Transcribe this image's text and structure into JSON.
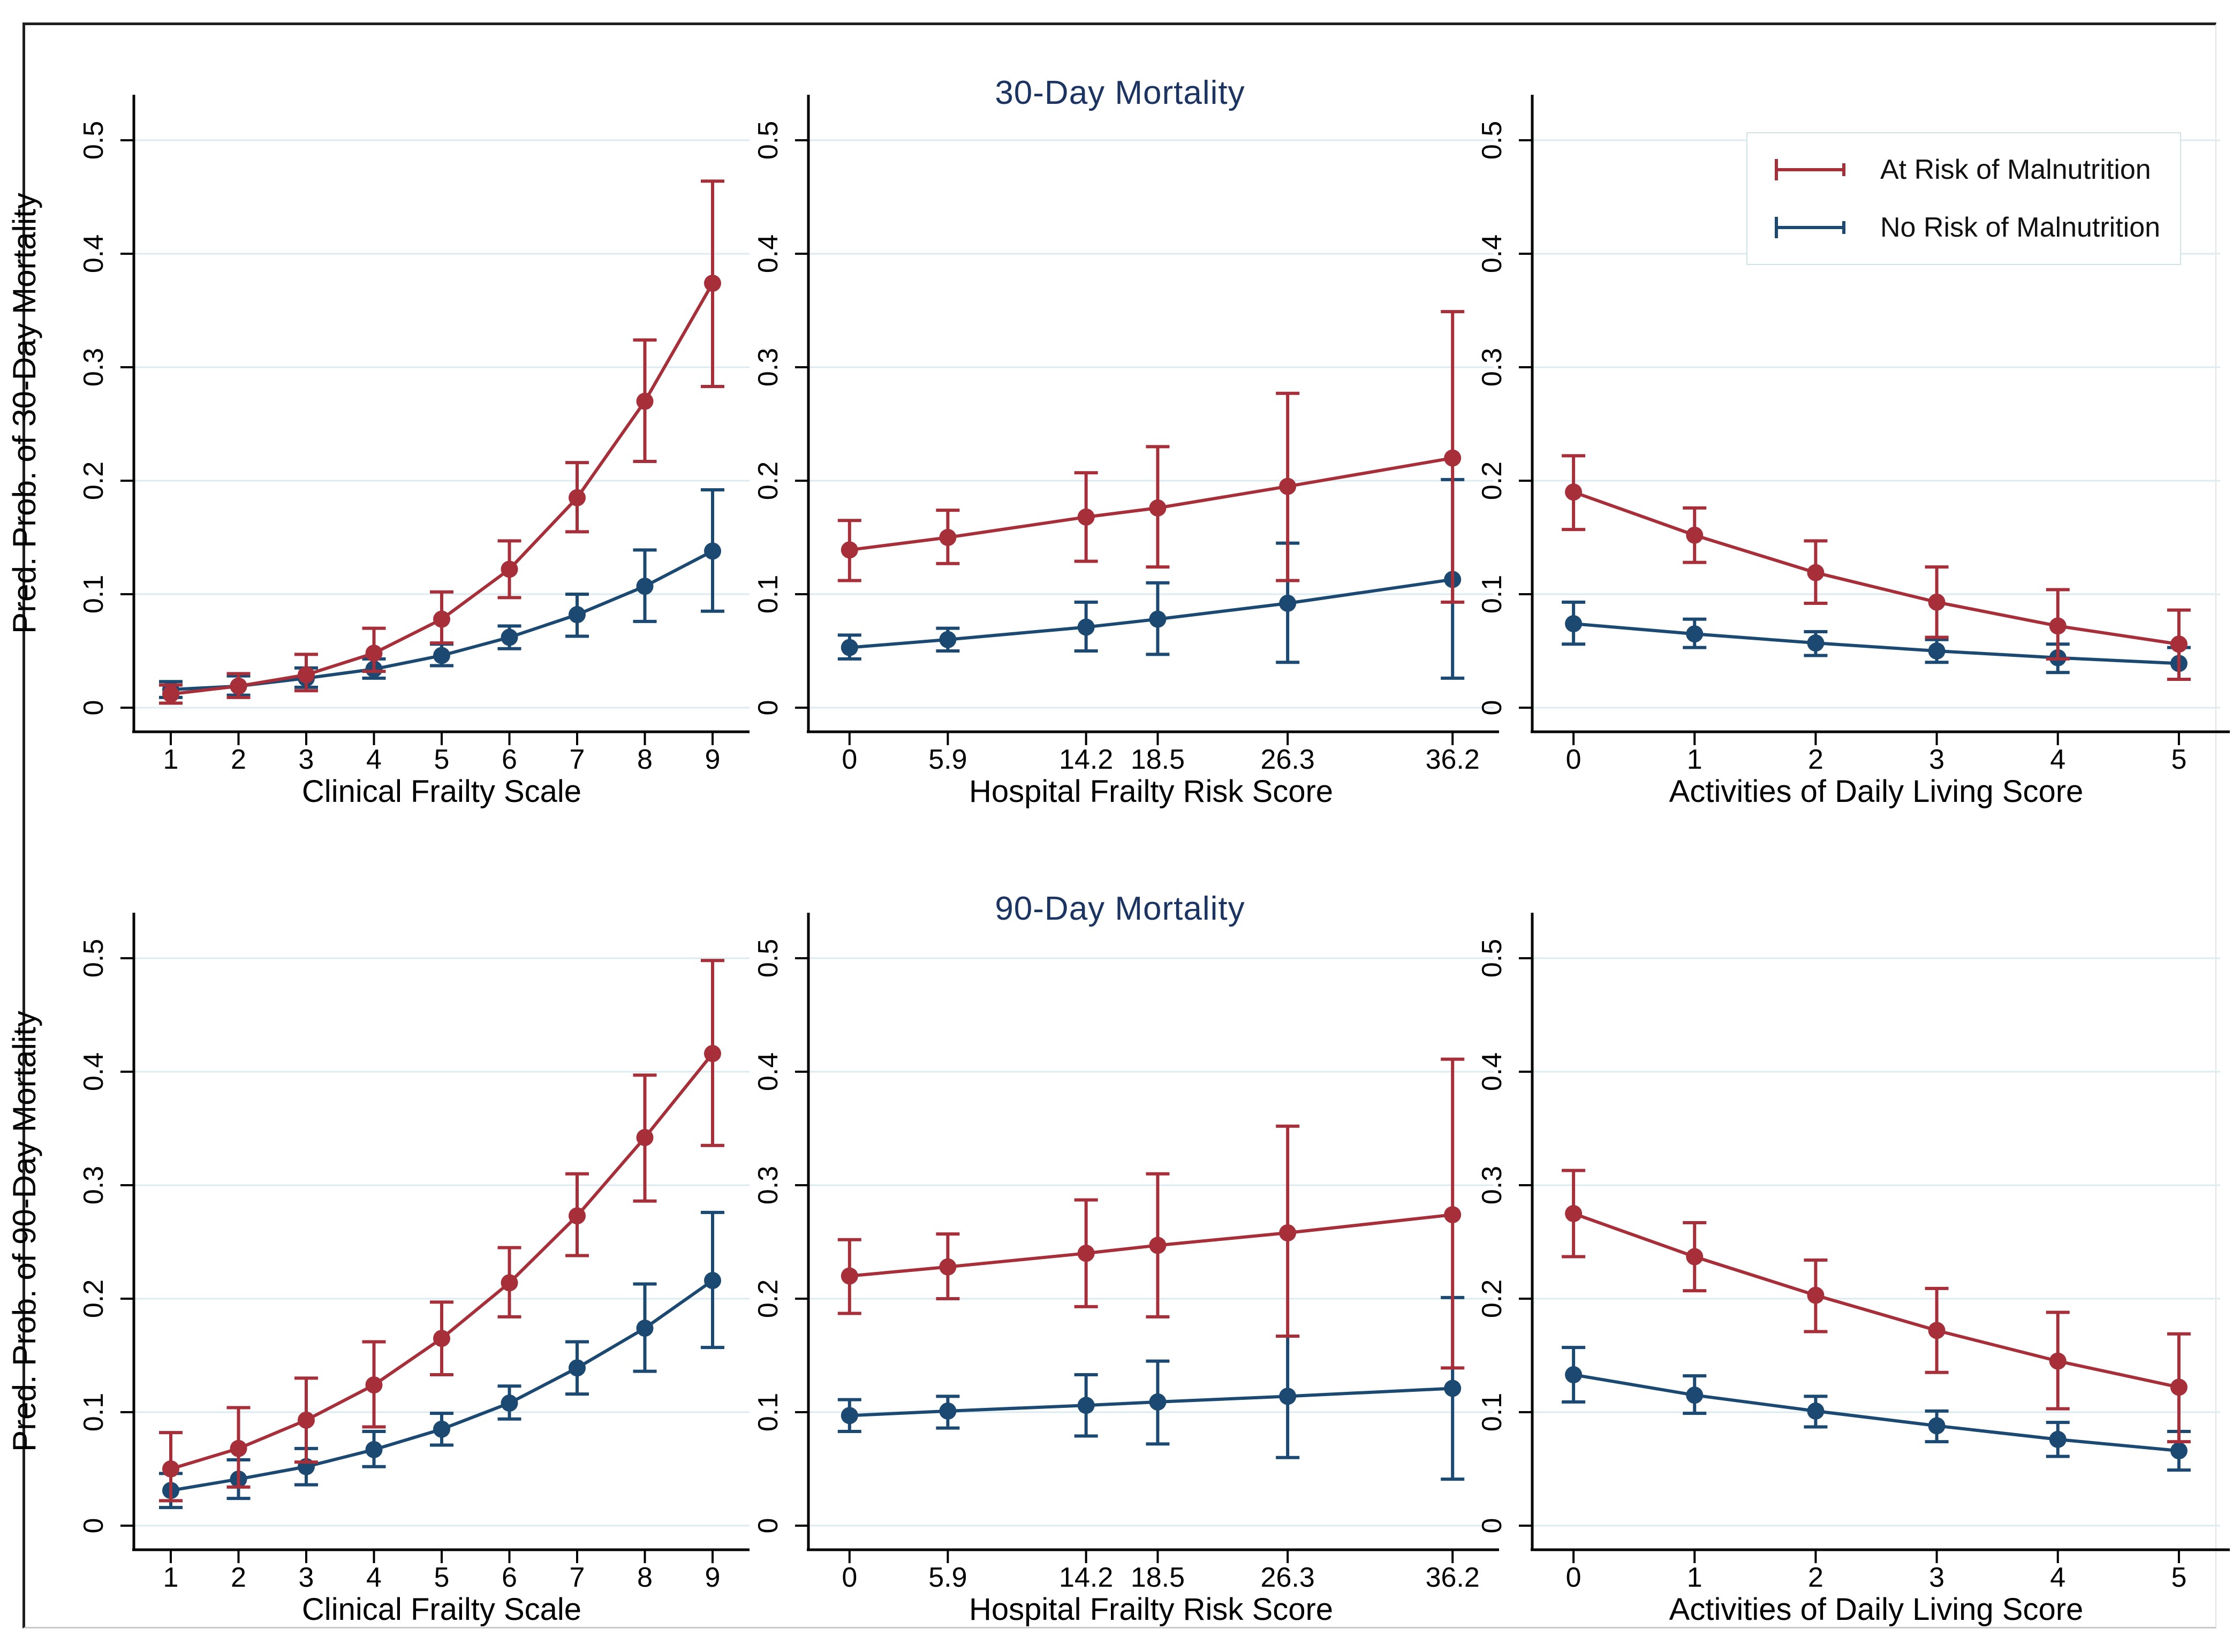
{
  "figure": {
    "row_titles": [
      "30-Day Mortality",
      "90-Day Mortality"
    ],
    "title_color": "#1b3461",
    "grid_color": "#dcebf0",
    "axis_color": "#000000",
    "legend": {
      "items": [
        {
          "label": "At Risk of Malnutrition",
          "color": "#A62F39"
        },
        {
          "label": "No Risk of Malnutrition",
          "color": "#1B4972"
        }
      ]
    }
  },
  "chart_data": [
    {
      "id": "p1",
      "type": "line",
      "group_title": "30-Day Mortality",
      "ylabel": "Pred. Prob. of 30-Day Mortality",
      "xlabel": "Clinical Frailty Scale",
      "x": [
        1,
        2,
        3,
        4,
        5,
        6,
        7,
        8,
        9
      ],
      "x_tick_labels": [
        "1",
        "2",
        "3",
        "4",
        "5",
        "6",
        "7",
        "8",
        "9"
      ],
      "xlim": [
        1,
        9
      ],
      "ylim": [
        0,
        0.5
      ],
      "y_ticks": [
        0,
        0.1,
        0.2,
        0.3,
        0.4,
        0.5
      ],
      "y_tick_labels": [
        "0",
        "0.1",
        "0.2",
        "0.3",
        "0.4",
        "0.5"
      ],
      "grid": true,
      "series": [
        {
          "name": "At Risk of Malnutrition",
          "color": "#A62F39",
          "y": [
            0.012,
            0.019,
            0.029,
            0.048,
            0.078,
            0.122,
            0.185,
            0.27,
            0.374
          ],
          "ci_low": [
            0.004,
            0.009,
            0.015,
            0.032,
            0.057,
            0.097,
            0.155,
            0.217,
            0.283
          ],
          "ci_high": [
            0.02,
            0.03,
            0.047,
            0.07,
            0.102,
            0.147,
            0.216,
            0.324,
            0.464
          ]
        },
        {
          "name": "No Risk of Malnutrition",
          "color": "#1B4972",
          "y": [
            0.016,
            0.019,
            0.026,
            0.034,
            0.046,
            0.062,
            0.082,
            0.107,
            0.138
          ],
          "ci_low": [
            0.009,
            0.011,
            0.018,
            0.026,
            0.037,
            0.052,
            0.063,
            0.076,
            0.085
          ],
          "ci_high": [
            0.023,
            0.028,
            0.035,
            0.043,
            0.056,
            0.072,
            0.1,
            0.139,
            0.192
          ]
        }
      ]
    },
    {
      "id": "p2",
      "type": "line",
      "group_title": "30-Day Mortality",
      "ylabel": "",
      "xlabel": "Hospital Frailty Risk Score",
      "x": [
        0,
        5.9,
        14.2,
        18.5,
        26.3,
        36.2
      ],
      "x_tick_labels": [
        "0",
        "5.9",
        "14.2",
        "18.5",
        "26.3",
        "36.2"
      ],
      "xlim": [
        0,
        36.2
      ],
      "ylim": [
        0,
        0.5
      ],
      "y_ticks": [
        0,
        0.1,
        0.2,
        0.3,
        0.4,
        0.5
      ],
      "y_tick_labels": [
        "0",
        "0.1",
        "0.2",
        "0.3",
        "0.4",
        "0.5"
      ],
      "grid": true,
      "series": [
        {
          "name": "At Risk of Malnutrition",
          "color": "#A62F39",
          "y": [
            0.139,
            0.15,
            0.168,
            0.176,
            0.195,
            0.22
          ],
          "ci_low": [
            0.112,
            0.127,
            0.129,
            0.124,
            0.112,
            0.093
          ],
          "ci_high": [
            0.165,
            0.174,
            0.207,
            0.23,
            0.277,
            0.349
          ]
        },
        {
          "name": "No Risk of Malnutrition",
          "color": "#1B4972",
          "y": [
            0.053,
            0.06,
            0.071,
            0.078,
            0.092,
            0.113
          ],
          "ci_low": [
            0.043,
            0.05,
            0.05,
            0.047,
            0.04,
            0.026
          ],
          "ci_high": [
            0.064,
            0.07,
            0.093,
            0.11,
            0.145,
            0.201
          ]
        }
      ]
    },
    {
      "id": "p3",
      "type": "line",
      "group_title": "30-Day Mortality",
      "ylabel": "",
      "xlabel": "Activities of Daily Living Score",
      "x": [
        0,
        1,
        2,
        3,
        4,
        5
      ],
      "x_tick_labels": [
        "0",
        "1",
        "2",
        "3",
        "4",
        "5"
      ],
      "xlim": [
        0,
        5
      ],
      "ylim": [
        0,
        0.5
      ],
      "y_ticks": [
        0,
        0.1,
        0.2,
        0.3,
        0.4,
        0.5
      ],
      "y_tick_labels": [
        "0",
        "0.1",
        "0.2",
        "0.3",
        "0.4",
        "0.5"
      ],
      "grid": true,
      "series": [
        {
          "name": "At Risk of Malnutrition",
          "color": "#A62F39",
          "y": [
            0.19,
            0.152,
            0.119,
            0.093,
            0.072,
            0.056
          ],
          "ci_low": [
            0.157,
            0.128,
            0.092,
            0.062,
            0.043,
            0.025
          ],
          "ci_high": [
            0.222,
            0.176,
            0.147,
            0.124,
            0.104,
            0.086
          ]
        },
        {
          "name": "No Risk of Malnutrition",
          "color": "#1B4972",
          "y": [
            0.074,
            0.065,
            0.057,
            0.05,
            0.044,
            0.039
          ],
          "ci_low": [
            0.056,
            0.053,
            0.046,
            0.04,
            0.031,
            0.025
          ],
          "ci_high": [
            0.093,
            0.078,
            0.067,
            0.06,
            0.056,
            0.053
          ]
        }
      ]
    },
    {
      "id": "p4",
      "type": "line",
      "group_title": "90-Day Mortality",
      "ylabel": "Pred. Prob. of 90-Day Mortality",
      "xlabel": "Clinical Frailty Scale",
      "x": [
        1,
        2,
        3,
        4,
        5,
        6,
        7,
        8,
        9
      ],
      "x_tick_labels": [
        "1",
        "2",
        "3",
        "4",
        "5",
        "6",
        "7",
        "8",
        "9"
      ],
      "xlim": [
        1,
        9
      ],
      "ylim": [
        0,
        0.5
      ],
      "y_ticks": [
        0,
        0.1,
        0.2,
        0.3,
        0.4,
        0.5
      ],
      "y_tick_labels": [
        "0",
        "0.1",
        "0.2",
        "0.3",
        "0.4",
        "0.5"
      ],
      "grid": true,
      "series": [
        {
          "name": "At Risk of Malnutrition",
          "color": "#A62F39",
          "y": [
            0.05,
            0.068,
            0.093,
            0.124,
            0.165,
            0.214,
            0.273,
            0.342,
            0.416
          ],
          "ci_low": [
            0.022,
            0.034,
            0.056,
            0.087,
            0.133,
            0.184,
            0.238,
            0.286,
            0.335
          ],
          "ci_high": [
            0.082,
            0.104,
            0.13,
            0.162,
            0.197,
            0.245,
            0.31,
            0.397,
            0.498
          ]
        },
        {
          "name": "No Risk of Malnutrition",
          "color": "#1B4972",
          "y": [
            0.031,
            0.041,
            0.052,
            0.067,
            0.085,
            0.108,
            0.139,
            0.174,
            0.216
          ],
          "ci_low": [
            0.016,
            0.024,
            0.036,
            0.052,
            0.071,
            0.094,
            0.116,
            0.136,
            0.157
          ],
          "ci_high": [
            0.046,
            0.058,
            0.068,
            0.083,
            0.099,
            0.123,
            0.162,
            0.213,
            0.276
          ]
        }
      ]
    },
    {
      "id": "p5",
      "type": "line",
      "group_title": "90-Day Mortality",
      "ylabel": "",
      "xlabel": "Hospital Frailty Risk Score",
      "x": [
        0,
        5.9,
        14.2,
        18.5,
        26.3,
        36.2
      ],
      "x_tick_labels": [
        "0",
        "5.9",
        "14.2",
        "18.5",
        "26.3",
        "36.2"
      ],
      "xlim": [
        0,
        36.2
      ],
      "ylim": [
        0,
        0.5
      ],
      "y_ticks": [
        0,
        0.1,
        0.2,
        0.3,
        0.4,
        0.5
      ],
      "y_tick_labels": [
        "0",
        "0.1",
        "0.2",
        "0.3",
        "0.4",
        "0.5"
      ],
      "grid": true,
      "series": [
        {
          "name": "At Risk of Malnutrition",
          "color": "#A62F39",
          "y": [
            0.22,
            0.228,
            0.24,
            0.247,
            0.258,
            0.274
          ],
          "ci_low": [
            0.187,
            0.2,
            0.193,
            0.184,
            0.167,
            0.139
          ],
          "ci_high": [
            0.252,
            0.257,
            0.287,
            0.31,
            0.352,
            0.411
          ]
        },
        {
          "name": "No Risk of Malnutrition",
          "color": "#1B4972",
          "y": [
            0.097,
            0.101,
            0.106,
            0.109,
            0.114,
            0.121
          ],
          "ci_low": [
            0.083,
            0.086,
            0.079,
            0.072,
            0.06,
            0.041
          ],
          "ci_high": [
            0.111,
            0.114,
            0.133,
            0.145,
            0.167,
            0.201
          ]
        }
      ]
    },
    {
      "id": "p6",
      "type": "line",
      "group_title": "90-Day Mortality",
      "ylabel": "",
      "xlabel": "Activities of Daily Living Score",
      "x": [
        0,
        1,
        2,
        3,
        4,
        5
      ],
      "x_tick_labels": [
        "0",
        "1",
        "2",
        "3",
        "4",
        "5"
      ],
      "xlim": [
        0,
        5
      ],
      "ylim": [
        0,
        0.5
      ],
      "y_ticks": [
        0,
        0.1,
        0.2,
        0.3,
        0.4,
        0.5
      ],
      "y_tick_labels": [
        "0",
        "0.1",
        "0.2",
        "0.3",
        "0.4",
        "0.5"
      ],
      "grid": true,
      "series": [
        {
          "name": "At Risk of Malnutrition",
          "color": "#A62F39",
          "y": [
            0.275,
            0.237,
            0.203,
            0.172,
            0.145,
            0.122
          ],
          "ci_low": [
            0.237,
            0.207,
            0.171,
            0.135,
            0.103,
            0.074
          ],
          "ci_high": [
            0.313,
            0.267,
            0.234,
            0.209,
            0.188,
            0.169
          ]
        },
        {
          "name": "No Risk of Malnutrition",
          "color": "#1B4972",
          "y": [
            0.133,
            0.115,
            0.101,
            0.088,
            0.076,
            0.066
          ],
          "ci_low": [
            0.109,
            0.099,
            0.087,
            0.074,
            0.061,
            0.049
          ],
          "ci_high": [
            0.157,
            0.132,
            0.114,
            0.101,
            0.091,
            0.083
          ]
        }
      ]
    }
  ]
}
